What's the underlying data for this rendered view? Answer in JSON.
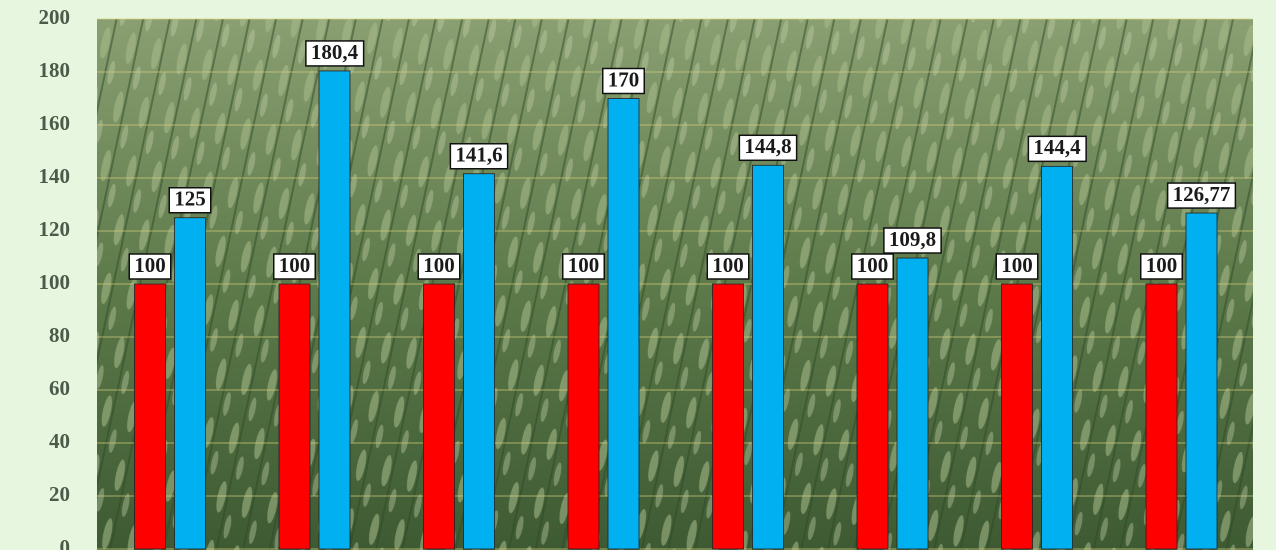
{
  "chart_data": {
    "type": "bar",
    "categories": [
      null,
      null,
      null,
      null,
      null,
      null,
      null,
      null
    ],
    "series": [
      {
        "color": "#ff0000",
        "values": [
          100,
          100,
          100,
          100,
          100,
          100,
          100,
          100
        ]
      },
      {
        "color": "#00b0f0",
        "values": [
          125,
          180.4,
          141.6,
          170,
          144.8,
          109.8,
          144.4,
          126.77
        ],
        "value_labels": [
          "125",
          "180,4",
          "141,6",
          "170",
          "144,8",
          "109,8",
          "144,4",
          "126,77"
        ]
      }
    ],
    "ylim": [
      0,
      200
    ],
    "yticks": [
      0,
      20,
      40,
      60,
      80,
      100,
      120,
      140,
      160,
      180,
      200
    ],
    "grid": true
  }
}
